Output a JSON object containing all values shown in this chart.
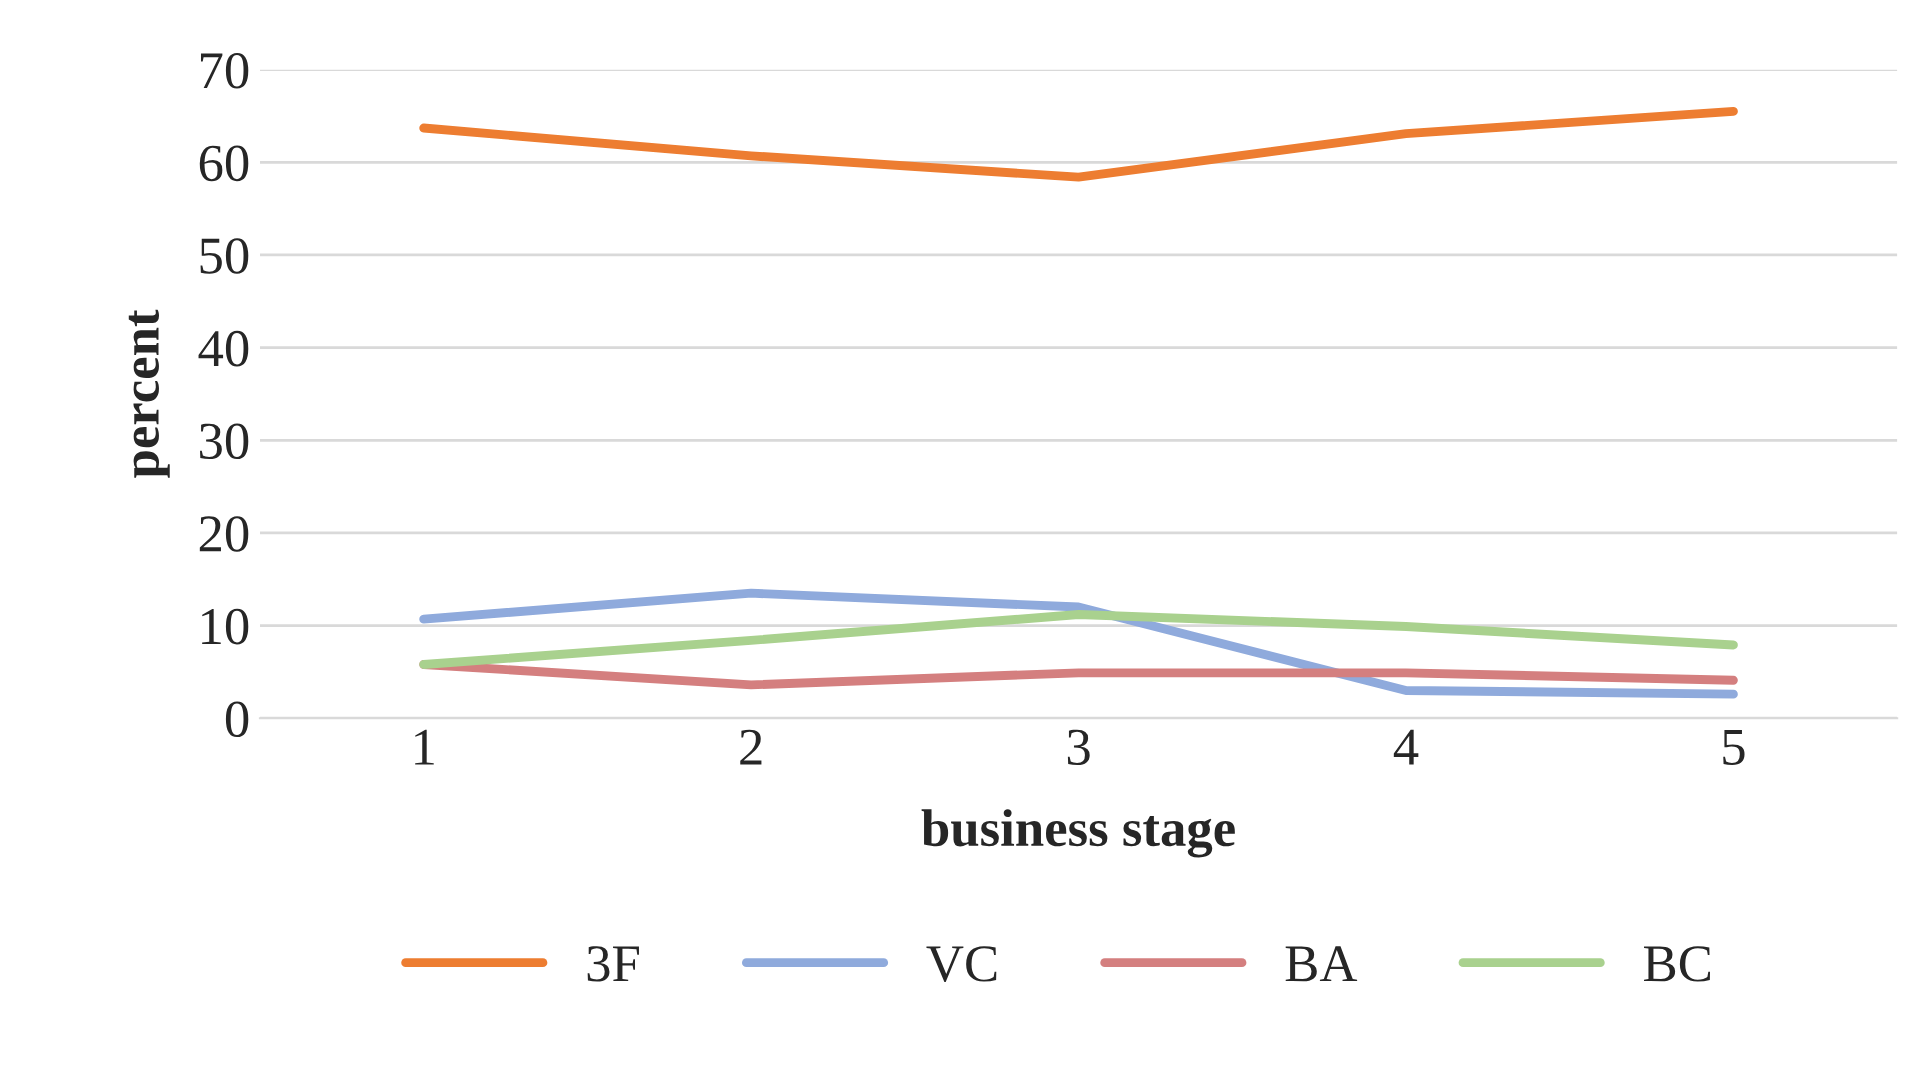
{
  "chart_data": {
    "type": "line",
    "xlabel": "business stage",
    "ylabel": "percent",
    "categories": [
      "1",
      "2",
      "3",
      "4",
      "5"
    ],
    "series": [
      {
        "name": "3F",
        "color": "#ed7d31",
        "values": [
          63.7,
          60.7,
          58.4,
          63.1,
          65.5
        ]
      },
      {
        "name": "VC",
        "color": "#8faadc",
        "values": [
          10.7,
          13.5,
          12.0,
          3.0,
          2.6
        ]
      },
      {
        "name": "BA",
        "color": "#d47f7f",
        "values": [
          5.8,
          3.6,
          4.9,
          4.9,
          4.1
        ]
      },
      {
        "name": "BC",
        "color": "#a9d18e",
        "values": [
          5.8,
          8.4,
          11.2,
          9.9,
          7.9
        ]
      }
    ],
    "ylim": [
      0,
      70
    ],
    "yticks": [
      0,
      10,
      20,
      30,
      40,
      50,
      60,
      70
    ],
    "grid": "y",
    "legend": "bottom",
    "marker": "none",
    "line_style": "solid"
  }
}
